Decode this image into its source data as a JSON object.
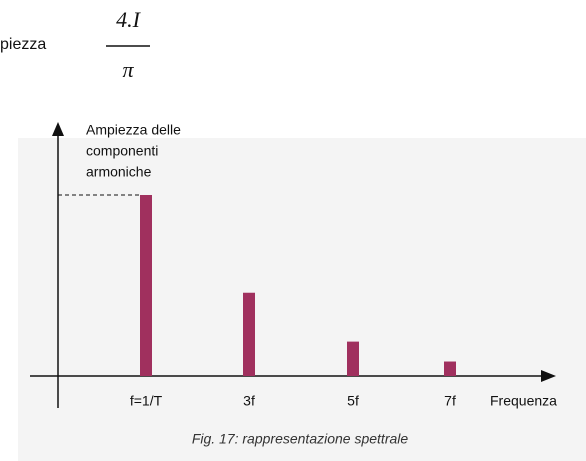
{
  "header": {
    "label": "piezza",
    "numerator": "4.I",
    "denominator": "π"
  },
  "chart_data": {
    "type": "bar",
    "ylabel_lines": [
      "Ampiezza delle",
      "componenti",
      "armoniche"
    ],
    "xlabel": "Frequenza",
    "categories": [
      "f=1/T",
      "3f",
      "5f",
      "7f"
    ],
    "values": [
      1,
      0.46,
      0.19,
      0.08
    ],
    "color": "#a0305e",
    "ylim": [
      0,
      1
    ],
    "caption": "Fig. 17: rappresentazione spettrale"
  }
}
